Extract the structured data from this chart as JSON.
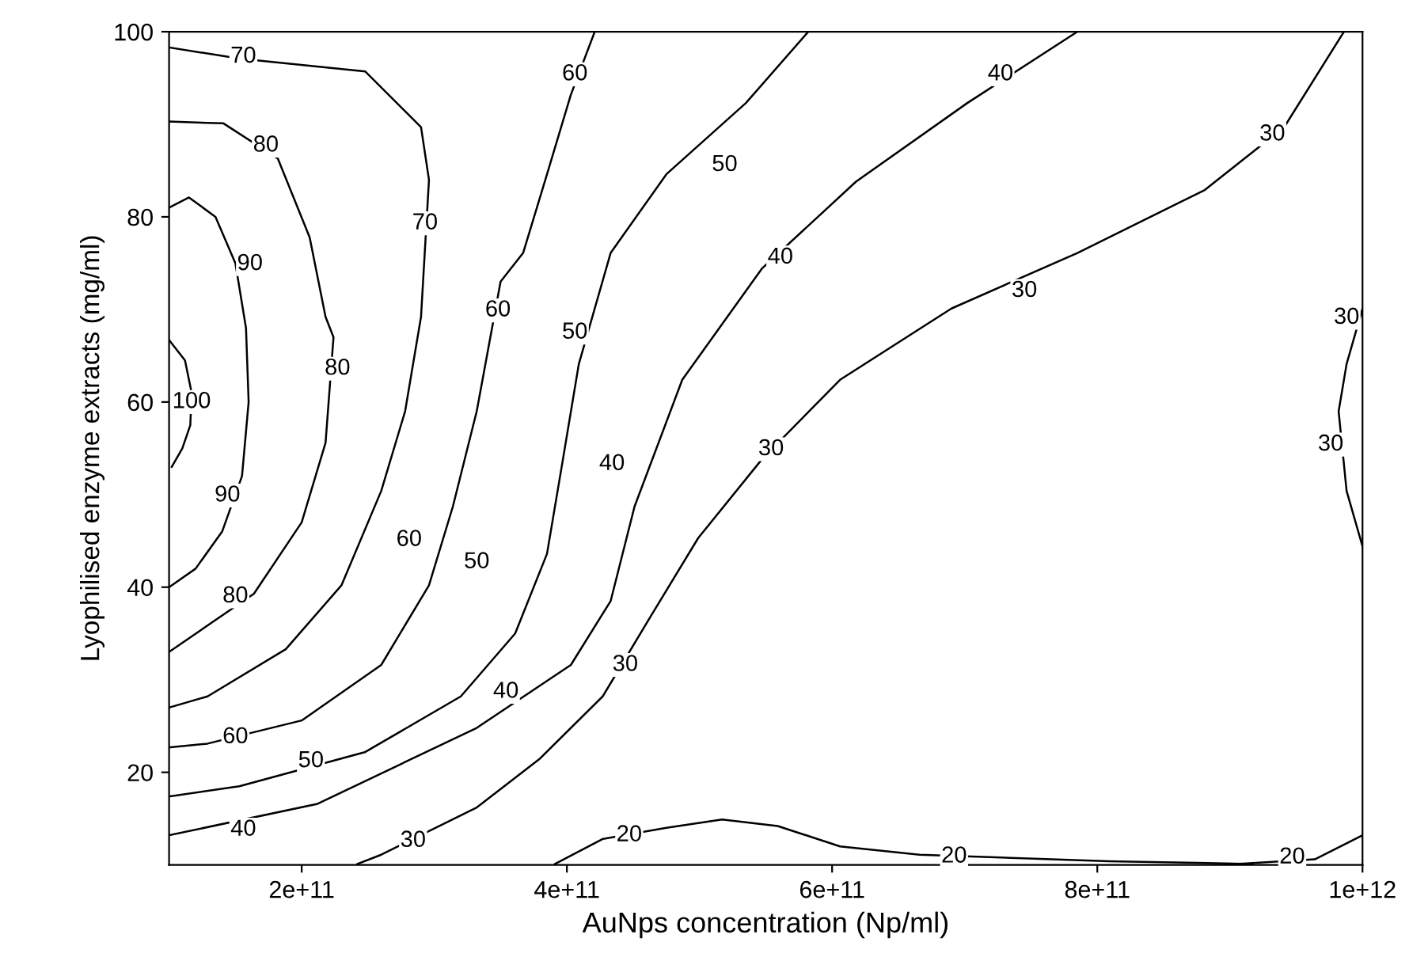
{
  "chart_data": {
    "type": "line",
    "xlabel": "AuNps concentration (Np/ml)",
    "ylabel": "Lyophilised enzyme extracts (mg/ml)",
    "xlim": [
      100000000000.0,
      1000000000000.0
    ],
    "ylim": [
      10,
      100
    ],
    "xticks": [
      {
        "value": 200000000000.0,
        "label": "2e+11"
      },
      {
        "value": 400000000000.0,
        "label": "4e+11"
      },
      {
        "value": 600000000000.0,
        "label": "6e+11"
      },
      {
        "value": 800000000000.0,
        "label": "8e+11"
      },
      {
        "value": 1000000000000.0,
        "label": "1e+12"
      }
    ],
    "yticks": [
      20,
      40,
      60,
      80,
      100
    ],
    "marker": "none",
    "line_style": "solid",
    "series": [
      {
        "color": "#000000",
        "x": [
          100000000000.0,
          112000000000.0,
          117000000000.0,
          116000000000.0,
          110000000000.0,
          102000000000.0
        ],
        "values": [
          66.7,
          64.5,
          61,
          57.5,
          55,
          53
        ]
      },
      {
        "color": "#000000",
        "x": [
          100000000000.0,
          115000000000.0,
          135000000000.0,
          150000000000.0,
          158000000000.0,
          160000000000.0,
          155000000000.0,
          140000000000.0,
          120000000000.0,
          100000000000.0
        ],
        "values": [
          81,
          82.1,
          80,
          75,
          68,
          60,
          52,
          46,
          42,
          40
        ]
      },
      {
        "color": "#000000",
        "x": [
          100000000000.0,
          141000000000.0,
          182000000000.0,
          206000000000.0,
          218000000000.0,
          224000000000.0,
          218000000000.0,
          200000000000.0,
          164000000000.0,
          100000000000.0
        ],
        "values": [
          90.3,
          90.1,
          86.3,
          77.8,
          69.2,
          67.0,
          55.6,
          47.0,
          39.3,
          33.0
        ]
      },
      {
        "color": "#000000",
        "x": [
          100000000000.0,
          153000000000.0,
          248000000000.0,
          290000000000.0,
          296000000000.0,
          290000000000.0,
          278000000000.0,
          260000000000.0,
          230000000000.0,
          188000000000.0,
          129000000000.0,
          100000000000.0
        ],
        "values": [
          98.3,
          97.1,
          95.7,
          89.7,
          84.0,
          69.2,
          59.0,
          50.4,
          40.2,
          33.3,
          28.2,
          27.0
        ]
      },
      {
        "color": "#000000",
        "x": [
          421000000000.0,
          403000000000.0,
          385000000000.0,
          367000000000.0,
          350000000000.0,
          332000000000.0,
          314000000000.0,
          296000000000.0,
          260000000000.0,
          200000000000.0,
          129000000000.0,
          100000000000.0
        ],
        "values": [
          100,
          93.2,
          84.6,
          76.1,
          73.0,
          59.0,
          48.7,
          40.2,
          31.6,
          25.6,
          23.1,
          22.7
        ]
      },
      {
        "color": "#000000",
        "x": [
          582000000000.0,
          535000000000.0,
          475000000000.0,
          433000000000.0,
          409000000000.0,
          397000000000.0,
          385000000000.0,
          361000000000.0,
          320000000000.0,
          248000000000.0,
          153000000000.0,
          100000000000.0
        ],
        "values": [
          100,
          92.3,
          84.6,
          76.1,
          64.1,
          53.8,
          43.6,
          35.0,
          28.2,
          22.2,
          18.5,
          17.4
        ]
      },
      {
        "color": "#000000",
        "x": [
          785000000000.0,
          702000000000.0,
          618000000000.0,
          547000000000.0,
          487000000000.0,
          451000000000.0,
          433000000000.0,
          403000000000.0,
          332000000000.0,
          212000000000.0,
          100000000000.0
        ],
        "values": [
          100,
          92.3,
          83.8,
          74.4,
          62.4,
          48.7,
          38.5,
          31.6,
          24.8,
          16.6,
          13.2
        ]
      },
      {
        "color": "#000000",
        "x": [
          986000000000.0,
          941000000000.0,
          881000000000.0,
          785000000000.0,
          690000000000.0,
          606000000000.0,
          547000000000.0,
          499000000000.0,
          463000000000.0,
          427000000000.0,
          379000000000.0,
          332000000000.0,
          260000000000.0,
          242000000000.0
        ],
        "values": [
          100,
          89.7,
          82.9,
          76.1,
          70.1,
          62.4,
          53.8,
          45.3,
          36.8,
          28.2,
          21.4,
          16.2,
          11.1,
          10.1
        ]
      },
      {
        "color": "#000000",
        "x": [
          1000000000000.0,
          988000000000.0,
          982000000000.0,
          988000000000.0,
          1000000000000.0
        ],
        "values": [
          70.1,
          64.1,
          59.0,
          50.4,
          44.4
        ]
      },
      {
        "color": "#000000",
        "x": [
          391000000000.0,
          427000000000.0,
          475000000000.0,
          517000000000.0,
          559000000000.0,
          606000000000.0,
          666000000000.0,
          809000000000.0,
          917000000000.0
        ],
        "values": [
          10.1,
          12.8,
          14.0,
          14.9,
          14.2,
          12.0,
          11.1,
          10.4,
          10.1
        ]
      },
      {
        "color": "#000000",
        "x": [
          905000000000.0,
          964000000000.0,
          1000000000000.0
        ],
        "values": [
          10.1,
          10.6,
          13.2
        ]
      }
    ],
    "annotations": [
      {
        "text": "70",
        "x": 156000000000.0,
        "y": 97.3
      },
      {
        "text": "70",
        "x": 293000000000.0,
        "y": 79.3
      },
      {
        "text": "80",
        "x": 173000000000.0,
        "y": 87.7
      },
      {
        "text": "80",
        "x": 227000000000.0,
        "y": 63.6
      },
      {
        "text": "80",
        "x": 150000000000.0,
        "y": 39.0
      },
      {
        "text": "90",
        "x": 161000000000.0,
        "y": 74.9
      },
      {
        "text": "90",
        "x": 144000000000.0,
        "y": 49.9
      },
      {
        "text": "100",
        "x": 117000000000.0,
        "y": 60
      },
      {
        "text": "60",
        "x": 406000000000.0,
        "y": 95.4
      },
      {
        "text": "60",
        "x": 348000000000.0,
        "y": 69.9
      },
      {
        "text": "60",
        "x": 281000000000.0,
        "y": 45.1
      },
      {
        "text": "60",
        "x": 150000000000.0,
        "y": 23.8
      },
      {
        "text": "50",
        "x": 519000000000.0,
        "y": 85.6
      },
      {
        "text": "50",
        "x": 406000000000.0,
        "y": 67.5
      },
      {
        "text": "50",
        "x": 332000000000.0,
        "y": 42.7
      },
      {
        "text": "50",
        "x": 207000000000.0,
        "y": 21.2
      },
      {
        "text": "40",
        "x": 727000000000.0,
        "y": 95.4
      },
      {
        "text": "40",
        "x": 561000000000.0,
        "y": 75.6
      },
      {
        "text": "40",
        "x": 434000000000.0,
        "y": 53.3
      },
      {
        "text": "40",
        "x": 354000000000.0,
        "y": 28.7
      },
      {
        "text": "40",
        "x": 156000000000.0,
        "y": 13.8
      },
      {
        "text": "30",
        "x": 932000000000.0,
        "y": 88.9
      },
      {
        "text": "30",
        "x": 745000000000.0,
        "y": 72.0
      },
      {
        "text": "30",
        "x": 554000000000.0,
        "y": 54.9
      },
      {
        "text": "30",
        "x": 444000000000.0,
        "y": 31.6
      },
      {
        "text": "30",
        "x": 284000000000.0,
        "y": 12.6
      },
      {
        "text": "30",
        "x": 988000000000.0,
        "y": 69.1
      },
      {
        "text": "30",
        "x": 976000000000.0,
        "y": 55.4
      },
      {
        "text": "20",
        "x": 447000000000.0,
        "y": 13.2
      },
      {
        "text": "20",
        "x": 692000000000.0,
        "y": 10.9
      },
      {
        "text": "20",
        "x": 947000000000.0,
        "y": 10.8
      }
    ]
  }
}
